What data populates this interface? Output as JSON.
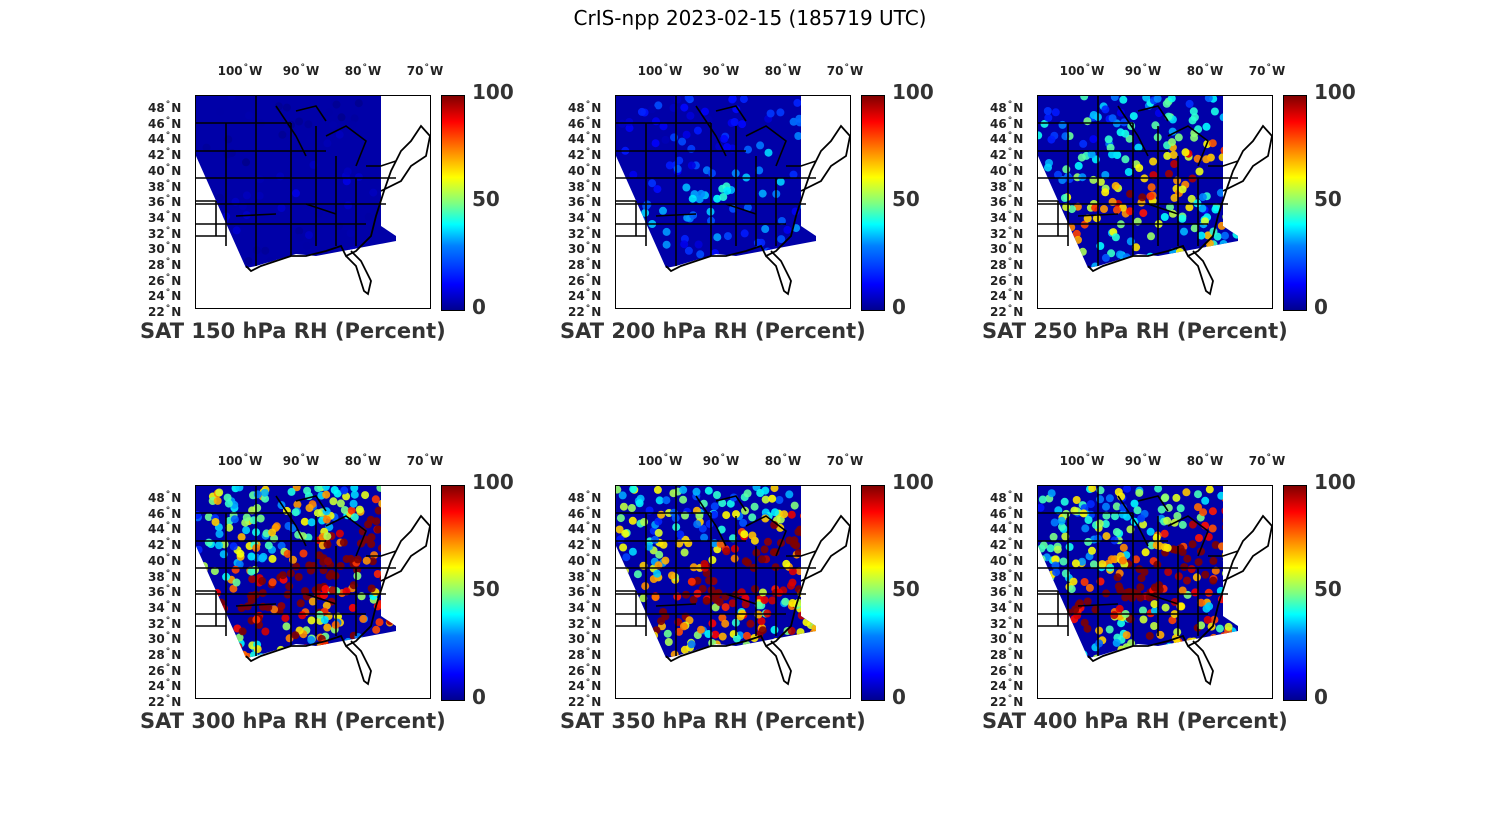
{
  "figure": {
    "title": "CrIS-npp 2023-02-15 (185719 UTC)"
  },
  "axes": {
    "lon_labels": [
      {
        "value": "100",
        "unit": "W"
      },
      {
        "value": "90",
        "unit": "W"
      },
      {
        "value": "80",
        "unit": "W"
      },
      {
        "value": "70",
        "unit": "W"
      }
    ],
    "lat_labels": [
      {
        "value": "48",
        "unit": "N"
      },
      {
        "value": "46",
        "unit": "N"
      },
      {
        "value": "44",
        "unit": "N"
      },
      {
        "value": "42",
        "unit": "N"
      },
      {
        "value": "40",
        "unit": "N"
      },
      {
        "value": "38",
        "unit": "N"
      },
      {
        "value": "36",
        "unit": "N"
      },
      {
        "value": "34",
        "unit": "N"
      },
      {
        "value": "32",
        "unit": "N"
      },
      {
        "value": "30",
        "unit": "N"
      },
      {
        "value": "28",
        "unit": "N"
      },
      {
        "value": "26",
        "unit": "N"
      },
      {
        "value": "24",
        "unit": "N"
      },
      {
        "value": "22",
        "unit": "N"
      }
    ],
    "degree_symbol": "°"
  },
  "colorbar": {
    "ticks": [
      "100",
      "50",
      "0"
    ],
    "range": [
      0,
      100
    ]
  },
  "panels": [
    {
      "title": "SAT 150 hPa RH (Percent)",
      "moisture": 0.05
    },
    {
      "title": "SAT 200 hPa RH (Percent)",
      "moisture": 0.2
    },
    {
      "title": "SAT 250 hPa RH (Percent)",
      "moisture": 0.5
    },
    {
      "title": "SAT 300 hPa RH (Percent)",
      "moisture": 0.75
    },
    {
      "title": "SAT 350 hPa RH (Percent)",
      "moisture": 0.7
    },
    {
      "title": "SAT 400 hPa RH (Percent)",
      "moisture": 0.7
    }
  ]
}
